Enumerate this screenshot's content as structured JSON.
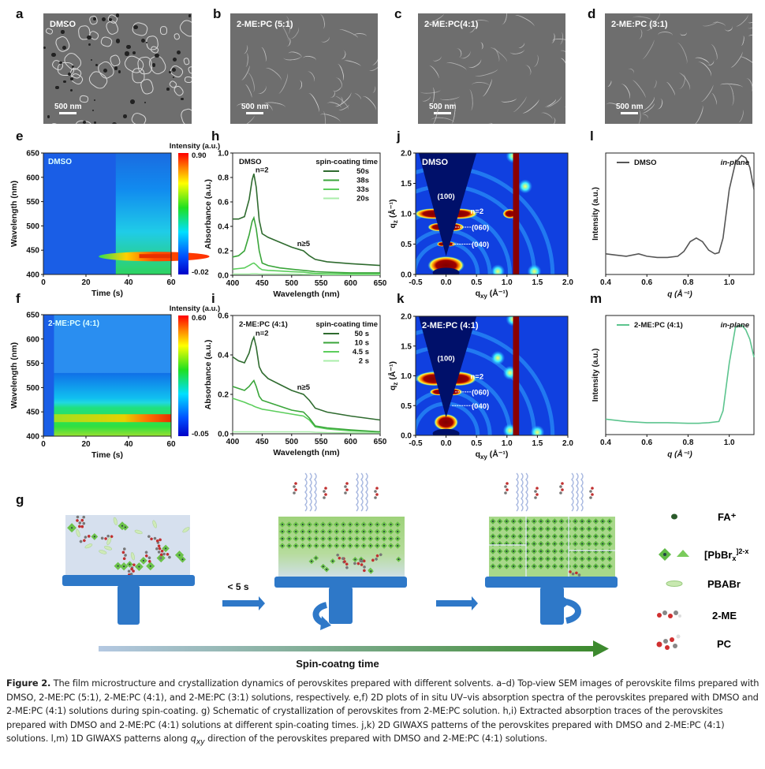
{
  "panel_letters": {
    "a": "a",
    "b": "b",
    "c": "c",
    "d": "d",
    "e": "e",
    "f": "f",
    "g": "g",
    "h": "h",
    "i": "i",
    "j": "j",
    "k": "k",
    "l": "l",
    "m": "m"
  },
  "sem": [
    {
      "label": "DMSO",
      "scale": "500 nm"
    },
    {
      "label": "2-ME:PC (5:1)",
      "scale": "500 nm"
    },
    {
      "label": "2-ME:PC(4:1)",
      "scale": "500 nm"
    },
    {
      "label": "2-ME:PC (3:1)",
      "scale": "500 nm"
    }
  ],
  "chart_data": [
    {
      "id": "e",
      "type": "heatmap",
      "inset_label": "DMSO",
      "xlabel": "Time (s)",
      "ylabel": "Wavelength (nm)",
      "xlim": [
        0,
        60
      ],
      "ylim": [
        400,
        650
      ],
      "xticks": [
        "0",
        "20",
        "40",
        "60"
      ],
      "yticks": [
        "400",
        "450",
        "500",
        "550",
        "600",
        "650"
      ],
      "colorbar": {
        "title": "Intensity (a.u.)",
        "max": "0.90",
        "min": "-0.02"
      },
      "features": [
        {
          "onset_time_s": 34,
          "peak_wavelength_nm": 437,
          "peak_intensity_time_range_s": [
            45,
            60
          ]
        }
      ]
    },
    {
      "id": "f",
      "type": "heatmap",
      "inset_label": "2-ME:PC (4:1)",
      "xlabel": "Time (s)",
      "ylabel": "Wavelength (nm)",
      "xlim": [
        0,
        60
      ],
      "ylim": [
        400,
        650
      ],
      "xticks": [
        "0",
        "20",
        "40",
        "60"
      ],
      "yticks": [
        "400",
        "450",
        "500",
        "550",
        "600",
        "650"
      ],
      "colorbar": {
        "title": "Intensity (a.u.)",
        "max": "0.60",
        "min": "-0.05"
      },
      "features": [
        {
          "onset_time_s": 5,
          "band_edge_nm": 530,
          "peak_wavelength_nm": 437,
          "peak_intensity_time_range_s": [
            50,
            60
          ]
        }
      ]
    },
    {
      "id": "h",
      "type": "line",
      "inset_label": "DMSO",
      "xlabel": "Wavelength (nm)",
      "ylabel": "Absorbance (a.u.)",
      "xlim": [
        400,
        650
      ],
      "ylim": [
        0,
        1.0
      ],
      "xticks": [
        "400",
        "450",
        "500",
        "550",
        "600",
        "650"
      ],
      "yticks": [
        "0.0",
        "0.2",
        "0.4",
        "0.6",
        "0.8",
        "1.0"
      ],
      "legend_title": "spin-coating time",
      "legend_position": "top-right",
      "annotations": [
        "n=2",
        "n≥5"
      ],
      "x": [
        400,
        410,
        420,
        428,
        433,
        436,
        440,
        445,
        450,
        460,
        480,
        500,
        520,
        530,
        540,
        560,
        600,
        650
      ],
      "series": [
        {
          "name": "50s",
          "color": "#2f6b2f",
          "values": [
            0.46,
            0.46,
            0.48,
            0.62,
            0.78,
            0.83,
            0.72,
            0.45,
            0.34,
            0.31,
            0.27,
            0.23,
            0.2,
            0.16,
            0.13,
            0.11,
            0.095,
            0.08
          ]
        },
        {
          "name": "38s",
          "color": "#3aa53a",
          "values": [
            0.15,
            0.16,
            0.2,
            0.33,
            0.44,
            0.47,
            0.38,
            0.2,
            0.1,
            0.08,
            0.06,
            0.05,
            0.04,
            0.035,
            0.03,
            0.025,
            0.02,
            0.02
          ]
        },
        {
          "name": "33s",
          "color": "#5cce5c",
          "values": [
            0.05,
            0.055,
            0.06,
            0.08,
            0.095,
            0.1,
            0.085,
            0.06,
            0.045,
            0.04,
            0.035,
            0.03,
            0.025,
            0.02,
            0.015,
            0.012,
            0.01,
            0.01
          ]
        },
        {
          "name": "20s",
          "color": "#a9eea9",
          "values": [
            0.01,
            0.01,
            0.01,
            0.01,
            0.012,
            0.012,
            0.012,
            0.01,
            0.01,
            0.01,
            0.01,
            0.01,
            0.008,
            0.008,
            0.006,
            0.005,
            0.005,
            0.005
          ]
        }
      ]
    },
    {
      "id": "i",
      "type": "line",
      "inset_label": "2-ME:PC (4:1)",
      "xlabel": "Wavelength (nm)",
      "ylabel": "Absorbance (a.u.)",
      "xlim": [
        400,
        650
      ],
      "ylim": [
        0,
        0.6
      ],
      "xticks": [
        "400",
        "450",
        "500",
        "550",
        "600",
        "650"
      ],
      "yticks": [
        "0.0",
        "0.2",
        "0.4",
        "0.6"
      ],
      "legend_title": "spin-coating time",
      "legend_position": "top-right",
      "annotations": [
        "n=2",
        "n≥5"
      ],
      "x": [
        400,
        410,
        420,
        428,
        433,
        436,
        440,
        445,
        450,
        460,
        480,
        500,
        520,
        530,
        540,
        560,
        600,
        650
      ],
      "series": [
        {
          "name": "50 s",
          "color": "#2f6b2f",
          "values": [
            0.39,
            0.37,
            0.36,
            0.41,
            0.47,
            0.49,
            0.44,
            0.34,
            0.31,
            0.28,
            0.25,
            0.22,
            0.2,
            0.17,
            0.13,
            0.11,
            0.09,
            0.07
          ]
        },
        {
          "name": "10 s",
          "color": "#3aa53a",
          "values": [
            0.24,
            0.23,
            0.22,
            0.24,
            0.26,
            0.27,
            0.24,
            0.19,
            0.17,
            0.16,
            0.14,
            0.12,
            0.11,
            0.08,
            0.04,
            0.03,
            0.02,
            0.01
          ]
        },
        {
          "name": "4.5 s",
          "color": "#5cce5c",
          "values": [
            0.18,
            0.17,
            0.16,
            0.15,
            0.145,
            0.14,
            0.135,
            0.13,
            0.125,
            0.12,
            0.11,
            0.1,
            0.09,
            0.07,
            0.035,
            0.025,
            0.015,
            0.01
          ]
        },
        {
          "name": "2 s",
          "color": "#a9eea9",
          "values": [
            0.01,
            0.01,
            0.01,
            0.01,
            0.01,
            0.01,
            0.01,
            0.01,
            0.01,
            0.01,
            0.01,
            0.01,
            0.01,
            0.01,
            0.008,
            0.006,
            0.005,
            0.005
          ]
        }
      ]
    },
    {
      "id": "j",
      "type": "heatmap",
      "inset_label": "DMSO",
      "xlabel": "q_xy (Å⁻¹)",
      "ylabel": "q_z (Å⁻¹)",
      "xlim": [
        -0.5,
        2.0
      ],
      "ylim": [
        0.0,
        2.0
      ],
      "xticks": [
        "-0.5",
        "0.0",
        "0.5",
        "1.0",
        "1.5",
        "2.0"
      ],
      "yticks": [
        "0.0",
        "0.5",
        "1.0",
        "1.5",
        "2.0"
      ],
      "annotations": [
        "(100)",
        "n=2",
        "(060)",
        "(040)"
      ]
    },
    {
      "id": "k",
      "type": "heatmap",
      "inset_label": "2-ME:PC (4:1)",
      "xlabel": "q_xy (Å⁻¹)",
      "ylabel": "q_z (Å⁻¹)",
      "xlim": [
        -0.5,
        2.0
      ],
      "ylim": [
        0.0,
        2.0
      ],
      "xticks": [
        "-0.5",
        "0.0",
        "0.5",
        "1.0",
        "1.5",
        "2.0"
      ],
      "yticks": [
        "0.0",
        "0.5",
        "1.0",
        "1.5",
        "2.0"
      ],
      "annotations": [
        "(100)",
        "n=2",
        "(060)",
        "(040)"
      ]
    },
    {
      "id": "l",
      "type": "line",
      "xlabel": "q (Å⁻¹)",
      "ylabel": "Intensity (a.u.)",
      "xlim": [
        0.4,
        1.12
      ],
      "ylim": [
        0,
        1
      ],
      "xticks": [
        "0.4",
        "0.6",
        "0.8",
        "1.0"
      ],
      "annotation": "in-plane",
      "legend_position": "top-left",
      "x": [
        0.4,
        0.45,
        0.5,
        0.56,
        0.6,
        0.65,
        0.7,
        0.75,
        0.78,
        0.81,
        0.84,
        0.87,
        0.9,
        0.93,
        0.95,
        0.97,
        1.0,
        1.03,
        1.06,
        1.08,
        1.1,
        1.12
      ],
      "series": [
        {
          "name": "DMSO",
          "color": "#555555",
          "values": [
            0.17,
            0.16,
            0.15,
            0.17,
            0.15,
            0.14,
            0.14,
            0.15,
            0.19,
            0.27,
            0.3,
            0.27,
            0.2,
            0.17,
            0.18,
            0.3,
            0.7,
            0.92,
            0.98,
            0.96,
            0.88,
            0.7
          ]
        }
      ]
    },
    {
      "id": "m",
      "type": "line",
      "xlabel": "q (Å⁻¹)",
      "ylabel": "Intensity (a.u.)",
      "xlim": [
        0.4,
        1.12
      ],
      "ylim": [
        0,
        1
      ],
      "xticks": [
        "0.4",
        "0.6",
        "0.8",
        "1.0"
      ],
      "annotation": "in-plane",
      "legend_position": "top-left",
      "x": [
        0.4,
        0.5,
        0.6,
        0.7,
        0.8,
        0.85,
        0.9,
        0.95,
        0.97,
        1.0,
        1.03,
        1.06,
        1.08,
        1.1,
        1.12
      ],
      "series": [
        {
          "name": "2-ME:PC (4:1)",
          "color": "#5cc48e",
          "values": [
            0.13,
            0.11,
            0.1,
            0.1,
            0.095,
            0.095,
            0.1,
            0.11,
            0.2,
            0.6,
            0.9,
            0.92,
            0.88,
            0.8,
            0.65
          ]
        }
      ]
    }
  ],
  "schematic": {
    "arrow1_label": "< 5 s",
    "timeline_label": "Spin-coatng time",
    "legend": [
      {
        "icon": "fa-cation-icon",
        "label": "FA⁺"
      },
      {
        "icon": "pbbr-octahedron-icon",
        "label": "[PbBr",
        "sub": "x",
        "sup": "]2-x"
      },
      {
        "icon": "pbabr-disc-icon",
        "label": "PBABr"
      },
      {
        "icon": "2me-molecule-icon",
        "label": "2-ME"
      },
      {
        "icon": "pc-molecule-icon",
        "label": "PC"
      }
    ]
  },
  "caption": {
    "figure": "Figure 2.",
    "text1": " The film microstructure and crystallization dynamics of perovskites prepared with different solvents. a–d) Top-view SEM images of perovskite films prepared with DMSO, 2-ME:PC (5:1), 2-ME:PC (4:1), and 2-ME:PC (3:1) solutions, respectively. e,f) 2D plots of in situ UV–vis absorption spectra of the perovskites prepared with DMSO and 2-ME:PC (4:1) solutions during spin-coating. g) Schematic of crystallization of perovskites from 2-ME:PC solution. h,i) Extracted absorption traces of the perovskites prepared with DMSO and 2-ME:PC (4:1) solutions at different spin-coating times. j,k) 2D GIWAXS patterns of the perovskites prepared with DMSO and 2-ME:PC (4:1) solutions. l,m) 1D GIWAXS patterns along ",
    "q": "q",
    "qsub": "xy",
    "text2": " direction of the perovskites prepared with DMSO and 2-ME:PC (4:1) solutions."
  }
}
